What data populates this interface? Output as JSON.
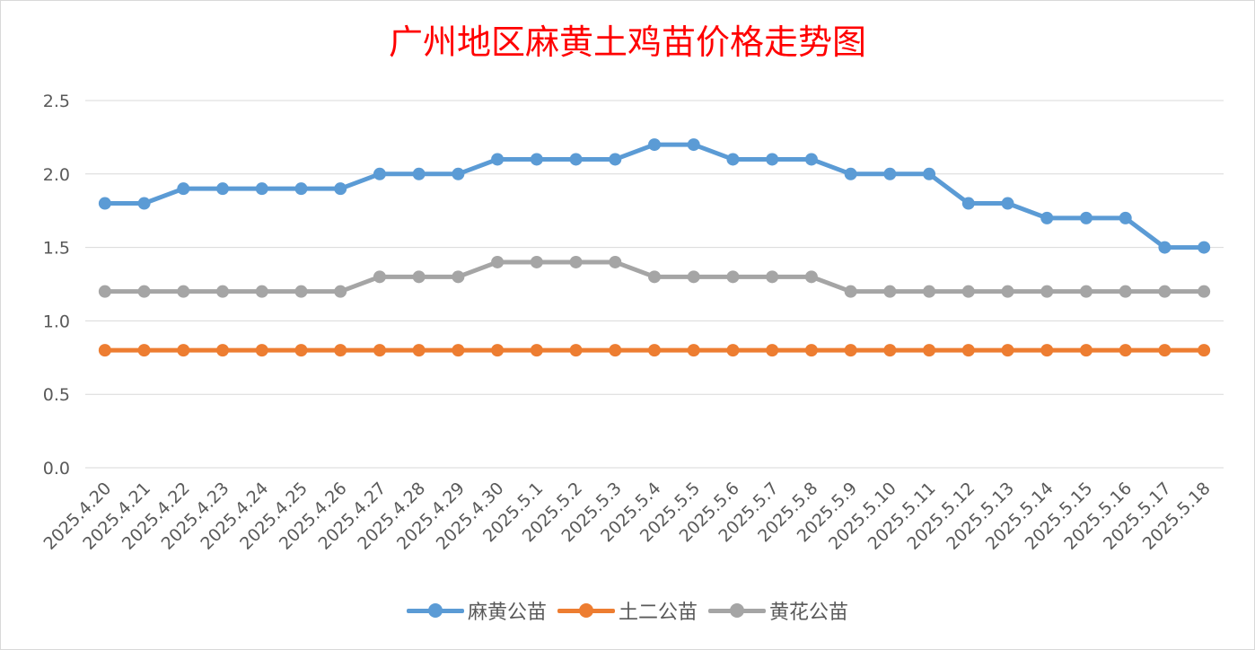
{
  "chart_data": {
    "type": "line",
    "title": "广州地区麻黄土鸡苗价格走势图",
    "xlabel": "",
    "ylabel": "",
    "ylim": [
      0,
      2.5
    ],
    "yticks": [
      "0.0",
      "0.5",
      "1.0",
      "1.5",
      "2.0",
      "2.5"
    ],
    "grid": true,
    "legend_position": "bottom",
    "categories": [
      "2025.4.20",
      "2025.4.21",
      "2025.4.22",
      "2025.4.23",
      "2025.4.24",
      "2025.4.25",
      "2025.4.26",
      "2025.4.27",
      "2025.4.28",
      "2025.4.29",
      "2025.4.30",
      "2025.5.1",
      "2025.5.2",
      "2025.5.3",
      "2025.5.4",
      "2025.5.5",
      "2025.5.6",
      "2025.5.7",
      "2025.5.8",
      "2025.5.9",
      "2025.5.10",
      "2025.5.11",
      "2025.5.12",
      "2025.5.13",
      "2025.5.14",
      "2025.5.15",
      "2025.5.16",
      "2025.5.17",
      "2025.5.18"
    ],
    "series": [
      {
        "name": "麻黄公苗",
        "color": "#5b9bd5",
        "values": [
          1.8,
          1.8,
          1.9,
          1.9,
          1.9,
          1.9,
          1.9,
          2.0,
          2.0,
          2.0,
          2.1,
          2.1,
          2.1,
          2.1,
          2.2,
          2.2,
          2.1,
          2.1,
          2.1,
          2.0,
          2.0,
          2.0,
          1.8,
          1.8,
          1.7,
          1.7,
          1.7,
          1.5,
          1.5
        ]
      },
      {
        "name": "土二公苗",
        "color": "#ed7d31",
        "values": [
          0.8,
          0.8,
          0.8,
          0.8,
          0.8,
          0.8,
          0.8,
          0.8,
          0.8,
          0.8,
          0.8,
          0.8,
          0.8,
          0.8,
          0.8,
          0.8,
          0.8,
          0.8,
          0.8,
          0.8,
          0.8,
          0.8,
          0.8,
          0.8,
          0.8,
          0.8,
          0.8,
          0.8,
          0.8
        ]
      },
      {
        "name": "黄花公苗",
        "color": "#a5a5a5",
        "values": [
          1.2,
          1.2,
          1.2,
          1.2,
          1.2,
          1.2,
          1.2,
          1.3,
          1.3,
          1.3,
          1.4,
          1.4,
          1.4,
          1.4,
          1.3,
          1.3,
          1.3,
          1.3,
          1.3,
          1.2,
          1.2,
          1.2,
          1.2,
          1.2,
          1.2,
          1.2,
          1.2,
          1.2,
          1.2
        ]
      }
    ]
  }
}
